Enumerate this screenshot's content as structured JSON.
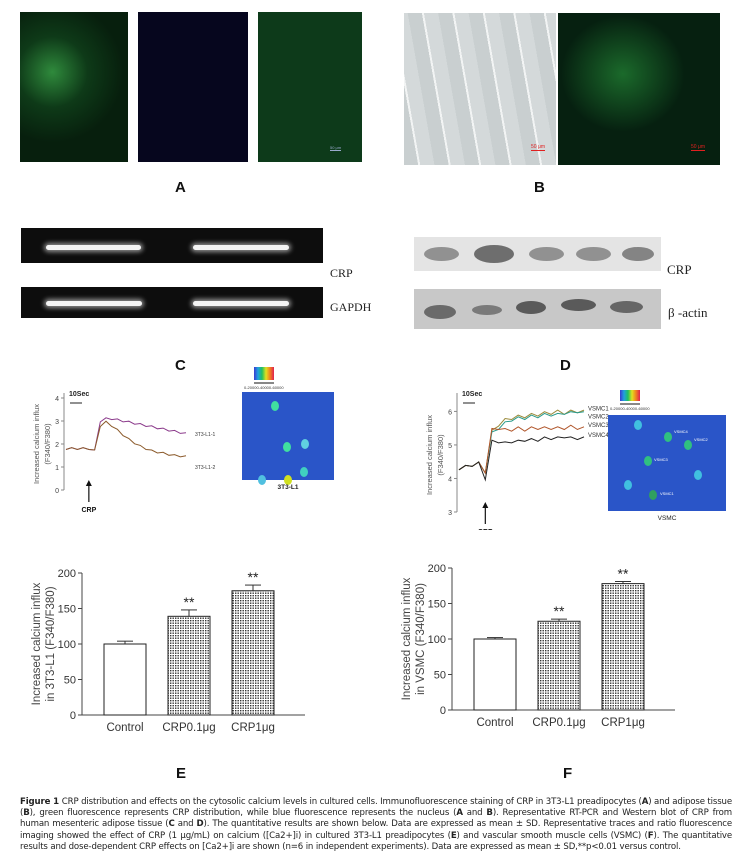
{
  "panels": {
    "A": {
      "label": "A",
      "scale_bar": "50 μm"
    },
    "B": {
      "label": "B",
      "scale_bar": "50 μm"
    },
    "C": {
      "label": "C",
      "gel_labels": [
        "CRP",
        "GAPDH"
      ]
    },
    "D": {
      "label": "D",
      "blot_labels": [
        "CRP",
        "β -actin"
      ]
    },
    "E": {
      "label": "E"
    },
    "F": {
      "label": "F"
    }
  },
  "colors": {
    "green_fluor": "#1f8a3a",
    "blue_fluor": "#2a2ad0",
    "ratio_bg": "#2a55c8",
    "sig_text": "#222222"
  },
  "chart_data": [
    {
      "id": "E-trace",
      "type": "line",
      "ylabel": "Increased calcium influx (F340/F380)",
      "yticks": [
        "0",
        "1",
        "2",
        "3",
        "4"
      ],
      "ylim": [
        0,
        4
      ],
      "time_bar": "10Sec",
      "annotation": "CRP",
      "series": [
        {
          "color": "#8b3a8b",
          "values": [
            1.8,
            1.8,
            1.8,
            1.8,
            1.8,
            1.7,
            3.0,
            3.1,
            3.1,
            3.05,
            3.0,
            2.95,
            2.9,
            2.85,
            2.8,
            2.75,
            2.7,
            2.65,
            2.6,
            2.55,
            2.5,
            2.45
          ]
        },
        {
          "color": "#8b5a2b",
          "values": [
            1.8,
            1.8,
            1.8,
            1.8,
            1.8,
            1.7,
            2.8,
            2.95,
            2.8,
            2.6,
            2.4,
            2.2,
            2.05,
            1.9,
            1.8,
            1.7,
            1.65,
            1.6,
            1.55,
            1.5,
            1.48,
            1.45
          ]
        }
      ],
      "colorbar": "0-20000-40000-60000",
      "image_caption": "3T3-L1",
      "cell_labels": [
        "3T3-L1-1",
        "3T3-L1-2"
      ]
    },
    {
      "id": "F-trace",
      "type": "line",
      "ylabel": "Increased calcium influx (F340/F380)",
      "yticks": [
        "3",
        "4",
        "5",
        "6"
      ],
      "ylim": [
        3,
        6.4
      ],
      "time_bar": "10Sec",
      "annotation": "CRP",
      "series": [
        {
          "name": "VSMC1",
          "color": "#9a8a3a",
          "values": [
            4.3,
            4.35,
            4.4,
            4.45,
            4.2,
            5.4,
            5.6,
            5.75,
            5.8,
            5.85,
            5.85,
            5.9,
            5.9,
            5.95,
            5.95,
            6.0,
            5.95,
            6.0,
            6.0,
            6.0
          ]
        },
        {
          "name": "VSMC2",
          "color": "#2a9a8a",
          "values": [
            4.3,
            4.35,
            4.4,
            4.45,
            4.2,
            5.35,
            5.5,
            5.65,
            5.75,
            5.8,
            5.8,
            5.85,
            5.85,
            5.9,
            5.9,
            5.9,
            5.95,
            5.95,
            6.0,
            5.95
          ]
        },
        {
          "name": "VSMC3",
          "color": "#b0552a",
          "values": [
            4.3,
            4.35,
            4.4,
            4.45,
            4.2,
            5.45,
            5.5,
            5.45,
            5.45,
            5.5,
            5.45,
            5.5,
            5.5,
            5.5,
            5.5,
            5.5,
            5.5,
            5.55,
            5.5,
            5.5
          ]
        },
        {
          "name": "VSMC4",
          "color": "#222222",
          "values": [
            4.3,
            4.35,
            4.4,
            4.45,
            4.0,
            5.1,
            5.1,
            5.05,
            5.1,
            5.1,
            5.15,
            5.15,
            5.15,
            5.2,
            5.2,
            5.2,
            5.25,
            5.2,
            5.2,
            5.2
          ]
        }
      ],
      "colorbar": "0-20000-40000-60000",
      "image_caption": "VSMC",
      "cell_labels": [
        "VSMC4",
        "VSMC2",
        "VSMC3",
        "VSMC1"
      ]
    },
    {
      "id": "E-bar",
      "type": "bar",
      "ylabel": "Increased calcium influx in 3T3-L1 (F340/F380)",
      "ylabel_lines": [
        "Increased calcium influx",
        "in 3T3-L1 (F340/F380)"
      ],
      "categories": [
        "Control",
        "CRP0.1μg",
        "CRP1μg"
      ],
      "values": [
        100,
        139,
        175
      ],
      "errors": [
        4,
        9,
        8
      ],
      "significance": [
        "",
        "**",
        "**"
      ],
      "yticks": [
        "0",
        "50",
        "100",
        "150",
        "200"
      ],
      "ylim": [
        0,
        200
      ]
    },
    {
      "id": "F-bar",
      "type": "bar",
      "ylabel": "Increased calcium influx in VSMC (F340/F380)",
      "ylabel_lines": [
        "Increased calcium influx",
        "in VSMC (F340/F380)"
      ],
      "categories": [
        "Control",
        "CRP0.1μg",
        "CRP1μg"
      ],
      "values": [
        100,
        125,
        178
      ],
      "errors": [
        2,
        3,
        3
      ],
      "significance": [
        "",
        "**",
        "**"
      ],
      "yticks": [
        "0",
        "50",
        "100",
        "150",
        "200"
      ],
      "ylim": [
        0,
        200
      ]
    }
  ],
  "caption": [
    {
      "b": true,
      "t": "Figure 1 "
    },
    {
      "t": "CRP distribution and effects on the cytosolic calcium levels in cultured cells. Immunofluorescence staining of CRP in 3T3-L1 preadipocytes ("
    },
    {
      "b": true,
      "t": "A"
    },
    {
      "t": ") and adipose tissue ("
    },
    {
      "b": true,
      "t": "B"
    },
    {
      "t": "), green fluorescence represents CRP distribution, while blue fluorescence represents the nucleus ("
    },
    {
      "b": true,
      "t": "A"
    },
    {
      "t": " and "
    },
    {
      "b": true,
      "t": "B"
    },
    {
      "t": "). Representative RT-PCR and Western blot of CRP from human mesenteric adipose tissue ("
    },
    {
      "b": true,
      "t": "C"
    },
    {
      "t": " and "
    },
    {
      "b": true,
      "t": "D"
    },
    {
      "t": "). The quantitative results are shown below. Data are expressed as mean ± SD. Representative traces and ratio fluorescence imaging showed the effect of CRP (1 μg/mL) on calcium ([Ca2+]i) in cultured 3T3-L1 preadipocytes ("
    },
    {
      "b": true,
      "t": "E"
    },
    {
      "t": ") and vascular smooth muscle cells (VSMC) ("
    },
    {
      "b": true,
      "t": "F"
    },
    {
      "t": "). The quantitative results and dose-dependent CRP effects on [Ca2+]i are shown (n=6 in independent experiments). Data are expressed as mean ± SD,**p<0.01 versus control."
    }
  ]
}
